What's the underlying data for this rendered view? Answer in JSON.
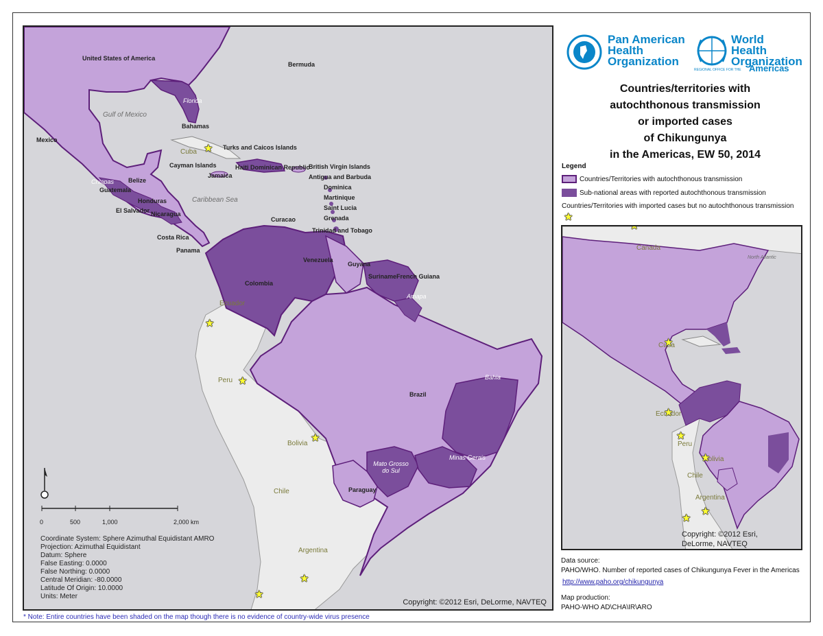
{
  "colors": {
    "autochthonous": "#c4a3da",
    "subnational": "#7b4e9c",
    "border": "#5d1f7a",
    "ocean": "#d6d6da",
    "nodata_land": "#ececec",
    "link": "#2222aa"
  },
  "logos": {
    "paho_name": "Pan American Health Organization",
    "paho_line1": "Pan American",
    "paho_line2": "Health",
    "paho_line3": "Organization",
    "who_line1": "World Health",
    "who_line2": "Organization",
    "who_region_prefix": "REGIONAL OFFICE FOR THE",
    "who_region": "Americas"
  },
  "title_lines": [
    "Countries/territories with",
    "autochthonous transmission",
    "or imported cases",
    "of Chikungunya",
    "in the Americas, EW 50, 2014"
  ],
  "legend": {
    "title": "Legend",
    "items": [
      {
        "label": "Countries/Territories with autochthonous transmission",
        "symbol": "autochthonous"
      },
      {
        "label": "Sub-national areas with reported autochthonous transmission",
        "symbol": "subnational"
      },
      {
        "label": "Countries/Territories with imported cases but no autochthonous transmission",
        "symbol": "star"
      }
    ]
  },
  "main_map": {
    "labels": {
      "usa": "United States of America",
      "bermuda": "Bermuda",
      "florida": "Florida",
      "gulf": "Gulf of Mexico",
      "bahamas": "Bahamas",
      "mexico": "Mexico",
      "cuba": "Cuba",
      "turks": "Turks and Caicos Islands",
      "cayman": "Cayman Islands",
      "jamaica": "Jamaica",
      "haiti_dr": "Haiti Dominican Republic",
      "bvi": "British Virgin Islands",
      "antigua": "Antigua and Barbuda",
      "dominica": "Dominica",
      "martinique": "Martinique",
      "saint_lucia": "Saint Lucia",
      "grenada": "Grenada",
      "trinidad": "Trinidad and Tobago",
      "chiapas": "Chiapas",
      "belize": "Belize",
      "guatemala": "Guatemala",
      "honduras": "Honduras",
      "el_salvador": "El Salvador",
      "nicaragua": "Nicaragua",
      "costa_rica": "Costa Rica",
      "panama": "Panama",
      "caribbean_sea": "Caribbean Sea",
      "curacao": "Curacao",
      "venezuela": "Venezuela",
      "guyana": "Guyana",
      "suriname": "Suriname",
      "french_guiana": "French Guiana",
      "amapa": "Amapa",
      "colombia": "Colombia",
      "ecuador": "Ecuador",
      "peru": "Peru",
      "brazil": "Brazil",
      "bahia": "Bahia",
      "bolivia": "Bolivia",
      "mato_grosso": "Mato Grosso do Sul",
      "minas_gerais": "Minas Gerais",
      "paraguay": "Paraguay",
      "chile": "Chile",
      "argentina": "Argentina"
    },
    "scale": {
      "ticks": [
        "0",
        "500",
        "1,000",
        "2,000 km"
      ]
    },
    "projection_info": [
      "Coordinate System: Sphere Azimuthal Equidistant AMRO",
      "Projection: Azimuthal Equidistant",
      "Datum: Sphere",
      "False Easting: 0.0000",
      "False Northing: 0.0000",
      "Central Meridian: -80.0000",
      "Latitude Of Origin: 10.0000",
      "Units: Meter"
    ],
    "copyright": "Copyright: ©2012 Esri, DeLorme, NAVTEQ"
  },
  "inset_map": {
    "labels": {
      "canada": "Canada",
      "north_atlantic": "North Atlantic",
      "cuba": "Cuba",
      "ecuador": "Ecuador",
      "peru": "Peru",
      "bolivia": "Bolivia",
      "chile": "Chile",
      "argentina": "Argentina"
    },
    "copyright_line1": "Copyright: ©2012 Esri,",
    "copyright_line2": "DeLorme, NAVTEQ"
  },
  "data_source": {
    "heading": "Data source:",
    "text": "PAHO/WHO. Number of reported cases of Chikungunya Fever in the Americas",
    "link": "http://www.paho.org/chikungunya",
    "production_heading": "Map production:",
    "production": "PAHO-WHO AD\\CHA\\IR\\ARO"
  },
  "footnote": "* Note: Entire countries have been shaded on the map though there is no evidence of country-wide virus presence"
}
